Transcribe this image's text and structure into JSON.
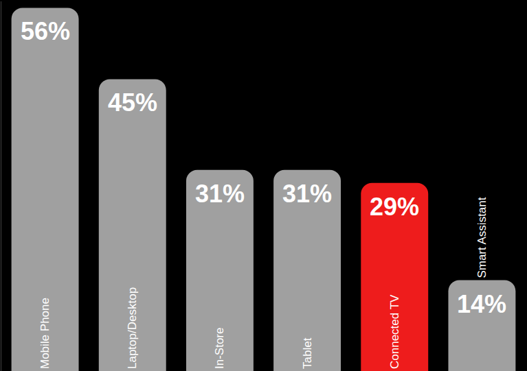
{
  "chart_data": {
    "type": "bar",
    "categories": [
      "Mobile Phone",
      "Laptop/Desktop",
      "In-Store",
      "Tablet",
      "Connected TV",
      "Smart Assistant"
    ],
    "values": [
      56,
      45,
      31,
      31,
      29,
      14
    ],
    "value_labels": [
      "56%",
      "45%",
      "31%",
      "31%",
      "29%",
      "14%"
    ],
    "colors": [
      "#a0a0a0",
      "#a0a0a0",
      "#a0a0a0",
      "#a0a0a0",
      "#ee1c1c",
      "#a0a0a0"
    ],
    "ylim": [
      0,
      57
    ],
    "data_labels": true,
    "tick_labels": false,
    "grid": false
  }
}
